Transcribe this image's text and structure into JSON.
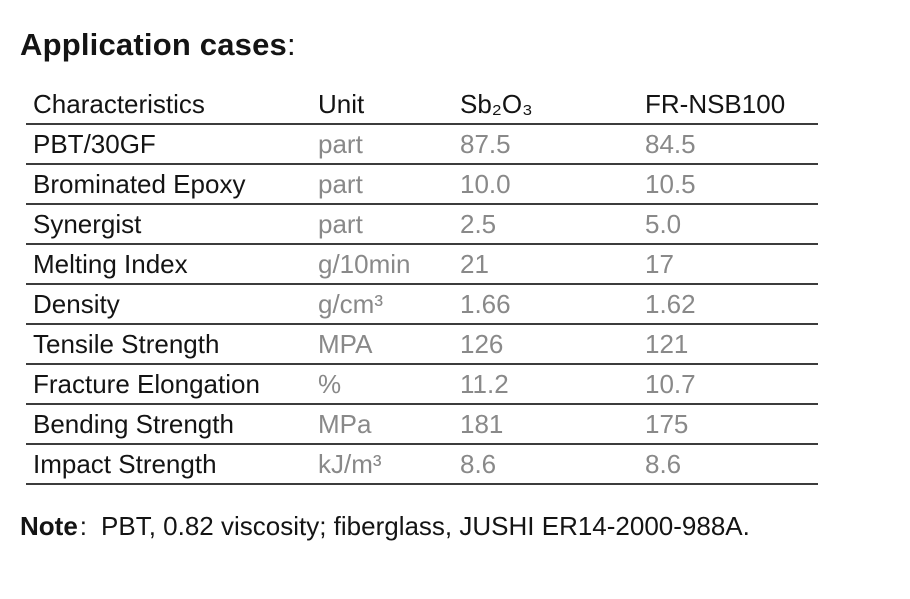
{
  "colors": {
    "ink": "#141414",
    "muted": "#898989",
    "line": "#3c3c3c",
    "background": "#ffffff"
  },
  "title": {
    "text": "Application cases",
    "colon": ":"
  },
  "table": {
    "columns": [
      "Characteristics",
      "Unit",
      "Sb₂O₃",
      "FR-NSB100"
    ],
    "rows": [
      {
        "characteristic": "PBT/30GF",
        "unit": "part",
        "sb2o3": "87.5",
        "fr_nsb100": "84.5"
      },
      {
        "characteristic": "Brominated Epoxy",
        "unit": "part",
        "sb2o3": "10.0",
        "fr_nsb100": "10.5"
      },
      {
        "characteristic": "Synergist",
        "unit": "part",
        "sb2o3": "2.5",
        "fr_nsb100": "5.0"
      },
      {
        "characteristic": "Melting Index",
        "unit": "g/10min",
        "sb2o3": "21",
        "fr_nsb100": "17"
      },
      {
        "characteristic": "Density",
        "unit": "g/cm³",
        "sb2o3": "1.66",
        "fr_nsb100": "1.62"
      },
      {
        "characteristic": "Tensile Strength",
        "unit": "MPA",
        "sb2o3": "126",
        "fr_nsb100": "121"
      },
      {
        "characteristic": "Fracture Elongation",
        "unit": "%",
        "sb2o3": "11.2",
        "fr_nsb100": "10.7"
      },
      {
        "characteristic": "Bending Strength",
        "unit": "MPa",
        "sb2o3": "181",
        "fr_nsb100": "175"
      },
      {
        "characteristic": "Impact Strength",
        "unit": "kJ/m³",
        "sb2o3": "8.6",
        "fr_nsb100": "8.6"
      }
    ]
  },
  "note": {
    "label": "Note",
    "colon": ":",
    "text": "PBT, 0.82 viscosity; fiberglass, JUSHI ER14-2000-988A."
  }
}
